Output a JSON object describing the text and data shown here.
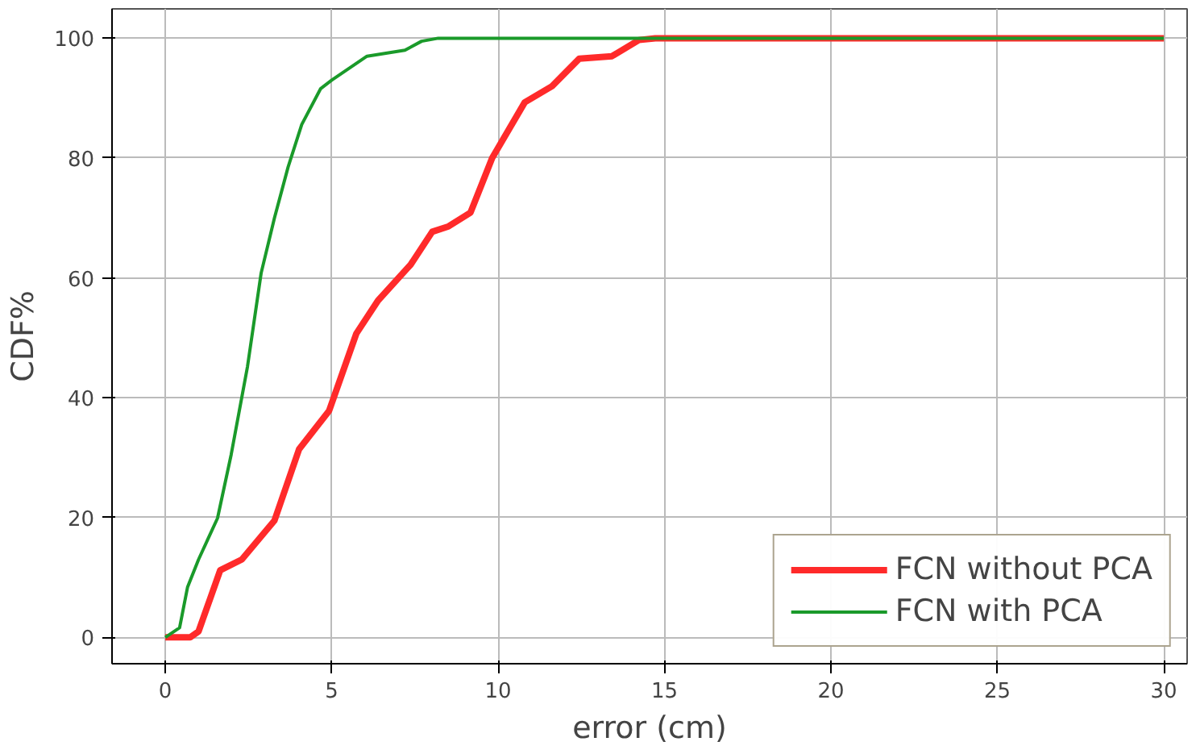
{
  "chart_data": {
    "type": "line",
    "xlabel": "error (cm)",
    "ylabel": "CDF%",
    "xlim": [
      -1.6,
      30.7
    ],
    "ylim": [
      -4.4,
      104.9
    ],
    "xticks": [
      0,
      5,
      10,
      15,
      20,
      25,
      30
    ],
    "yticks": [
      0,
      20,
      40,
      60,
      80,
      100
    ],
    "grid": true,
    "legend": "bottom right",
    "line_style": "solid",
    "marker": "none",
    "series": [
      {
        "name": "FCN without PCA",
        "color": "#ff2a2a",
        "x": [
          0,
          0.75,
          1.0,
          1.65,
          2.3,
          3.28,
          4.02,
          4.92,
          5.74,
          6.39,
          7.37,
          8.02,
          8.51,
          9.17,
          9.82,
          10.8,
          11.62,
          12.44,
          13.42,
          14.23,
          14.72,
          30
        ],
        "values": [
          0,
          0,
          1,
          11.2,
          13,
          19.5,
          31.4,
          37.8,
          50.7,
          56.2,
          62.2,
          67.7,
          68.6,
          70.9,
          80,
          89.3,
          92,
          96.6,
          97,
          99.7,
          100,
          100
        ]
      },
      {
        "name": "FCN with PCA",
        "color": "#1a9a2a",
        "x": [
          0,
          0.43,
          0.67,
          1.0,
          1.57,
          1.98,
          2.47,
          2.88,
          3.28,
          3.69,
          4.1,
          4.67,
          5.0,
          6.06,
          7.2,
          7.7,
          8.2,
          30
        ],
        "values": [
          0,
          1.6,
          8.4,
          13,
          19.9,
          30.5,
          45.2,
          60.8,
          70,
          78.5,
          85.6,
          91.6,
          93,
          97,
          98,
          99.5,
          100,
          100
        ]
      }
    ]
  }
}
